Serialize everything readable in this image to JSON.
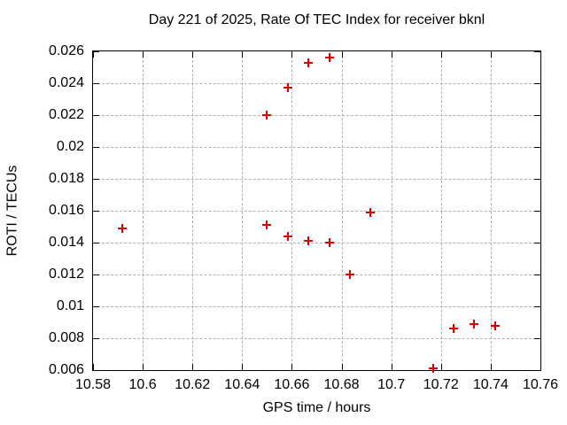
{
  "chart_data": {
    "type": "scatter",
    "title": "Day 221 of 2025, Rate Of TEC Index for receiver bknl",
    "xlabel": "GPS time / hours",
    "ylabel": "ROTI / TECUs",
    "xlim": [
      10.58,
      10.76
    ],
    "ylim": [
      0.006,
      0.026
    ],
    "grid": "dashed",
    "legend": "none",
    "marker": "plus",
    "marker_color": "#dd0000",
    "grid_color": "#b0b0b0",
    "axis_color": "#000000",
    "background_color": "#ffffff",
    "xticks": [
      {
        "value": 10.58,
        "label": "10.58"
      },
      {
        "value": 10.6,
        "label": "10.6"
      },
      {
        "value": 10.62,
        "label": "10.62"
      },
      {
        "value": 10.64,
        "label": "10.64"
      },
      {
        "value": 10.66,
        "label": "10.66"
      },
      {
        "value": 10.68,
        "label": "10.68"
      },
      {
        "value": 10.7,
        "label": "10.7"
      },
      {
        "value": 10.72,
        "label": "10.72"
      },
      {
        "value": 10.74,
        "label": "10.74"
      },
      {
        "value": 10.76,
        "label": "10.76"
      }
    ],
    "yticks": [
      {
        "value": 0.006,
        "label": "0.006"
      },
      {
        "value": 0.008,
        "label": "0.008"
      },
      {
        "value": 0.01,
        "label": "0.01"
      },
      {
        "value": 0.012,
        "label": "0.012"
      },
      {
        "value": 0.014,
        "label": "0.014"
      },
      {
        "value": 0.016,
        "label": "0.016"
      },
      {
        "value": 0.018,
        "label": "0.018"
      },
      {
        "value": 0.02,
        "label": "0.02"
      },
      {
        "value": 0.022,
        "label": "0.022"
      },
      {
        "value": 0.024,
        "label": "0.024"
      },
      {
        "value": 0.026,
        "label": "0.026"
      }
    ],
    "series": [
      {
        "name": "ROTI",
        "points": [
          [
            10.5917,
            0.0149
          ],
          [
            10.65,
            0.022
          ],
          [
            10.65,
            0.0151
          ],
          [
            10.6583,
            0.0237
          ],
          [
            10.6583,
            0.0144
          ],
          [
            10.6667,
            0.0253
          ],
          [
            10.6667,
            0.0141
          ],
          [
            10.675,
            0.0256
          ],
          [
            10.675,
            0.014
          ],
          [
            10.6833,
            0.012
          ],
          [
            10.6917,
            0.0159
          ],
          [
            10.7167,
            0.0061
          ],
          [
            10.725,
            0.0086
          ],
          [
            10.7333,
            0.0089
          ],
          [
            10.7417,
            0.0088
          ]
        ]
      }
    ]
  }
}
